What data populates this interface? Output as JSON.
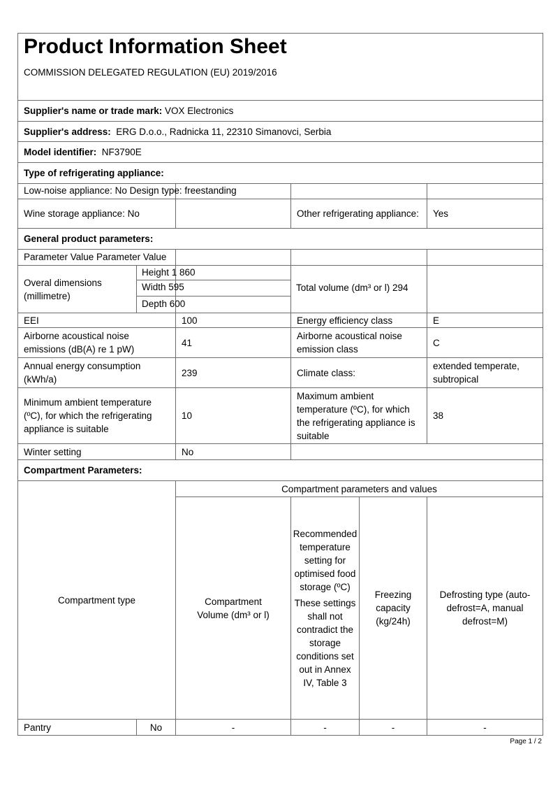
{
  "header": {
    "title": "Product Information Sheet",
    "subtitle": "COMMISSION DELEGATED REGULATION (EU) 2019/2016"
  },
  "supplier": {
    "name_label": "Supplier's name or trade mark:",
    "name_value": " VOX Electronics",
    "address_label": "Supplier's address:",
    "address_value": "  ERG D.o.o., Radnicka 11, 22310 Simanovci, Serbia",
    "model_label": "Model identifier:",
    "model_value": "  NF3790E"
  },
  "type": {
    "heading": "Type of refrigerating appliance:",
    "low_noise": "Low-noise appliance: No Design type: freestanding",
    "wine": "Wine storage appliance: No",
    "other_label": "Other refrigerating appliance:",
    "other_value": "Yes"
  },
  "general": {
    "heading": "General product parameters:",
    "param_header": "Parameter Value Parameter Value",
    "dimensions_label": "Overal dimensions (millimetre)",
    "height": "Height 1 860",
    "width": "Width 595",
    "depth": "Depth 600",
    "total_volume": "Total volume (dm³ or l) 294",
    "rows": [
      {
        "p1": "EEI",
        "v1": "100",
        "p2": "Energy efficiency class",
        "v2": "E"
      },
      {
        "p1": "Airborne acoustical noise emissions (dB(A) re 1 pW)",
        "v1": "41",
        "p2": "Airborne acoustical noise emission class",
        "v2": "C"
      },
      {
        "p1": "Annual energy consumption (kWh/a)",
        "v1": "239",
        "p2": "Climate class:",
        "v2": "extended temperate, subtropical"
      },
      {
        "p1": "Minimum ambient temperature (ºC), for which the refrigerating appliance is suitable",
        "v1": "10",
        "p2": "Maximum ambient temperature (ºC), for which the refrigerating appliance is suitable",
        "v2": "38"
      }
    ],
    "winter_label": "Winter setting",
    "winter_value": "No"
  },
  "compartment": {
    "heading": "Compartment Parameters:",
    "group_header": "Compartment parameters and values",
    "col_type": "Compartment type",
    "col_volume": "Compartment Volume (dm³ or l)",
    "col_temp": "Recommended temperature setting for optimised food storage (ºC)",
    "col_temp_note": "These settings shall not contradict the storage conditions set out in Annex IV, Table 3",
    "col_freeze": "Freezing capacity (kg/24h)",
    "col_defrost": "Defrosting type (auto-defrost=A, manual defrost=M)",
    "rows": [
      {
        "type": "Pantry",
        "present": "No",
        "volume": "-",
        "temp": "-",
        "freeze": "-",
        "defrost": "-"
      }
    ]
  },
  "footer": {
    "page": "Page 1 / 2"
  }
}
